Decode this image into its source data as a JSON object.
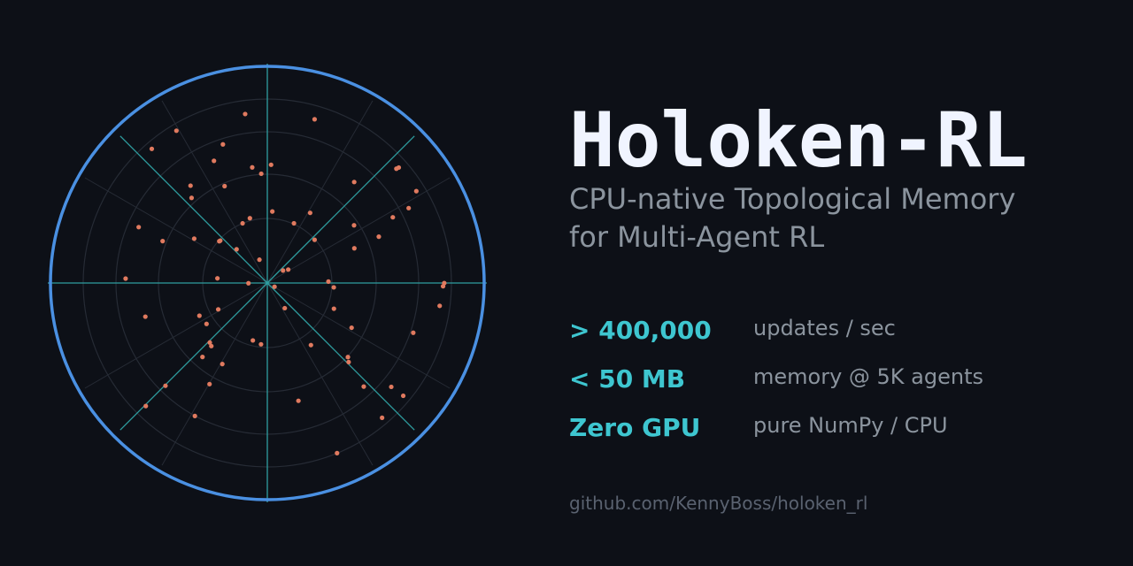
{
  "title": "Holoken-RL",
  "subtitle": [
    "CPU-native Topological Memory",
    "for Multi-Agent RL"
  ],
  "stats": [
    {
      "value": "> 400,000",
      "label": "updates / sec"
    },
    {
      "value": "< 50 MB",
      "label": "memory @ 5K agents"
    },
    {
      "value": "Zero GPU",
      "label": "pure NumPy / CPU"
    }
  ],
  "link": "github.com/KennyBoss/holoken_rl"
}
